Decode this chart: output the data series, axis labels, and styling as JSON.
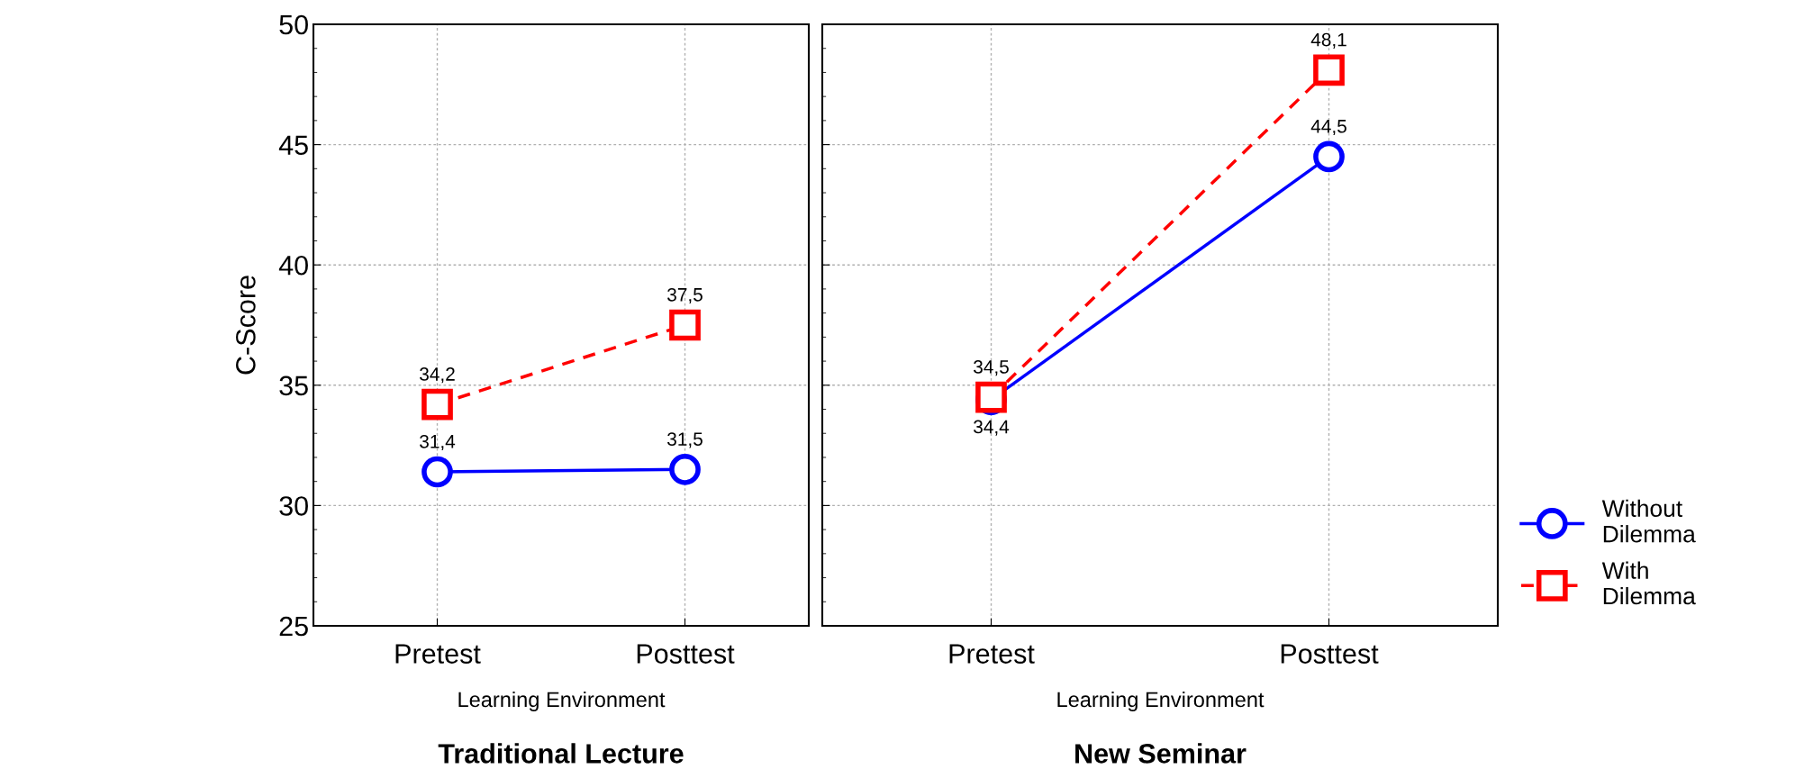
{
  "chart_data": [
    {
      "type": "line",
      "title": "Traditional Lecture",
      "xlabel": "Learning Environment",
      "ylabel": "C-Score",
      "categories": [
        "Pretest",
        "Posttest"
      ],
      "series": [
        {
          "color": "#0000ff",
          "values": [
            31.4,
            31.5
          ],
          "marker": "circle",
          "line_style": "solid",
          "value_labels": [
            "31,4",
            "31,5"
          ]
        },
        {
          "color": "#ff0000",
          "values": [
            34.2,
            37.5
          ],
          "marker": "square",
          "line_style": "dashed",
          "value_labels": [
            "34,2",
            "37,5"
          ]
        }
      ],
      "ylim": [
        25,
        50
      ],
      "yticks": [
        25,
        30,
        35,
        40,
        45,
        50
      ],
      "grid": true
    },
    {
      "type": "line",
      "title": "New Seminar",
      "xlabel": "Learning Environment",
      "categories": [
        "Pretest",
        "Posttest"
      ],
      "series": [
        {
          "name": "Without Dilemma",
          "color": "#0000ff",
          "values": [
            34.4,
            44.5
          ],
          "marker": "circle",
          "line_style": "solid",
          "value_labels": [
            "34,4",
            "44,5"
          ]
        },
        {
          "name": "With Dilemma",
          "color": "#ff0000",
          "values": [
            34.5,
            48.1
          ],
          "marker": "square",
          "line_style": "dashed",
          "value_labels": [
            "34,5",
            "48,1"
          ]
        }
      ],
      "ylim": [
        25,
        50
      ],
      "yticks": [
        25,
        30,
        35,
        40,
        45,
        50
      ],
      "grid": true,
      "legend": "right",
      "tick_labels": "x"
    }
  ]
}
